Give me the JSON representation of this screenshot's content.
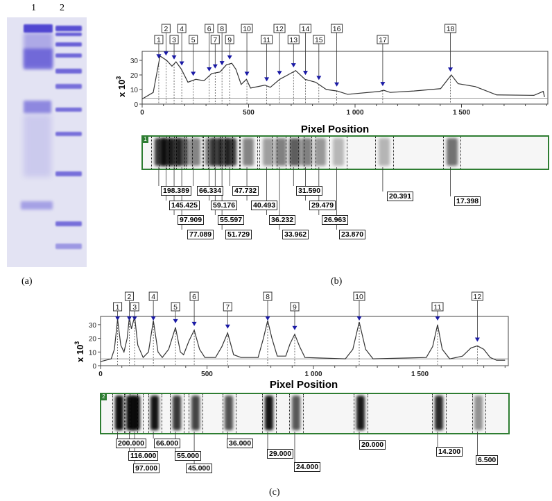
{
  "figure": {
    "panel_labels": {
      "a": "(a)",
      "b": "(b)",
      "c": "(c)"
    },
    "gel_lanes": [
      "1",
      "2"
    ]
  },
  "chart_data": [
    {
      "type": "line",
      "panel": "b",
      "xlabel": "Pixel Position",
      "ylabel": "x 10",
      "ylabel_superscript": "3",
      "xlim": [
        0,
        1900
      ],
      "ylim": [
        0,
        36
      ],
      "xticks": [
        "0",
        "500",
        "1 000",
        "1 500"
      ],
      "xtick_values": [
        0,
        500,
        1000,
        1500
      ],
      "yticks": [
        "0",
        "10",
        "20",
        "30"
      ],
      "ytick_values": [
        0,
        10,
        20,
        30
      ],
      "lane_tag": "1",
      "points": [
        [
          0,
          3.5
        ],
        [
          52,
          8
        ],
        [
          84,
          33
        ],
        [
          115,
          30
        ],
        [
          140,
          26
        ],
        [
          159,
          29
        ],
        [
          184,
          24
        ],
        [
          215,
          15
        ],
        [
          252,
          17
        ],
        [
          290,
          16
        ],
        [
          327,
          21
        ],
        [
          365,
          22
        ],
        [
          396,
          27
        ],
        [
          421,
          28
        ],
        [
          440,
          24
        ],
        [
          465,
          13.5
        ],
        [
          490,
          17
        ],
        [
          509,
          11
        ],
        [
          577,
          13
        ],
        [
          602,
          11.5
        ],
        [
          646,
          17
        ],
        [
          684,
          20
        ],
        [
          721,
          23
        ],
        [
          765,
          17
        ],
        [
          815,
          15
        ],
        [
          865,
          10
        ],
        [
          915,
          9
        ],
        [
          965,
          6.7
        ],
        [
          1115,
          8.7
        ],
        [
          1134,
          9.5
        ],
        [
          1165,
          8
        ],
        [
          1277,
          9
        ],
        [
          1402,
          10.6
        ],
        [
          1452,
          20
        ],
        [
          1484,
          14
        ],
        [
          1565,
          12
        ],
        [
          1665,
          6.3
        ],
        [
          1840,
          6
        ],
        [
          1884,
          8.7
        ],
        [
          1890,
          4.8
        ]
      ],
      "peaks": [
        {
          "label": "1",
          "x": 78,
          "mw": "198.389"
        },
        {
          "label": "2",
          "x": 112,
          "mw": "145.425"
        },
        {
          "label": "3",
          "x": 150,
          "mw": "97.909"
        },
        {
          "label": "4",
          "x": 186,
          "mw": "77.089"
        },
        {
          "label": "5",
          "x": 240,
          "mw": "66.334"
        },
        {
          "label": "6",
          "x": 315,
          "mw": "59.176"
        },
        {
          "label": "7",
          "x": 343,
          "mw": "55.597"
        },
        {
          "label": "8",
          "x": 375,
          "mw": "51.729"
        },
        {
          "label": "9",
          "x": 411,
          "mw": "47.732"
        },
        {
          "label": "10",
          "x": 492,
          "mw": "40.493"
        },
        {
          "label": "11",
          "x": 585,
          "mw": "36.232"
        },
        {
          "label": "12",
          "x": 645,
          "mw": "33.962"
        },
        {
          "label": "13",
          "x": 711,
          "mw": "31.590"
        },
        {
          "label": "14",
          "x": 767,
          "mw": "29.479"
        },
        {
          "label": "15",
          "x": 830,
          "mw": "26.963"
        },
        {
          "label": "16",
          "x": 914,
          "mw": "23.870"
        },
        {
          "label": "17",
          "x": 1130,
          "mw": "20.391"
        },
        {
          "label": "18",
          "x": 1448,
          "mw": "17.398"
        }
      ]
    },
    {
      "type": "line",
      "panel": "c",
      "xlabel": "Pixel Position",
      "ylabel": "x 10",
      "ylabel_superscript": "3",
      "xlim": [
        0,
        1900
      ],
      "ylim": [
        0,
        36
      ],
      "xticks": [
        "0",
        "500",
        "1 000",
        "1 500"
      ],
      "xtick_values": [
        0,
        500,
        1000,
        1500
      ],
      "yticks": [
        "0",
        "10",
        "20",
        "30"
      ],
      "ytick_values": [
        0,
        10,
        20,
        30
      ],
      "lane_tag": "2",
      "points": [
        [
          0,
          3
        ],
        [
          50,
          5
        ],
        [
          65,
          12
        ],
        [
          80,
          34
        ],
        [
          95,
          15
        ],
        [
          110,
          10
        ],
        [
          125,
          20
        ],
        [
          135,
          35
        ],
        [
          145,
          27
        ],
        [
          160,
          36
        ],
        [
          175,
          15
        ],
        [
          200,
          6
        ],
        [
          225,
          10
        ],
        [
          248,
          33
        ],
        [
          270,
          10
        ],
        [
          290,
          6
        ],
        [
          320,
          12
        ],
        [
          352,
          28
        ],
        [
          375,
          10
        ],
        [
          390,
          8
        ],
        [
          415,
          18
        ],
        [
          440,
          26
        ],
        [
          465,
          12
        ],
        [
          490,
          6
        ],
        [
          540,
          6
        ],
        [
          570,
          14
        ],
        [
          597,
          24
        ],
        [
          625,
          8
        ],
        [
          660,
          6
        ],
        [
          740,
          6
        ],
        [
          765,
          20
        ],
        [
          785,
          33
        ],
        [
          805,
          20
        ],
        [
          830,
          7
        ],
        [
          870,
          7
        ],
        [
          890,
          16
        ],
        [
          912,
          23
        ],
        [
          935,
          14
        ],
        [
          960,
          6
        ],
        [
          1150,
          5
        ],
        [
          1185,
          12
        ],
        [
          1215,
          32
        ],
        [
          1245,
          12
        ],
        [
          1280,
          5
        ],
        [
          1530,
          6
        ],
        [
          1560,
          14
        ],
        [
          1583,
          30
        ],
        [
          1605,
          12
        ],
        [
          1640,
          5
        ],
        [
          1700,
          7
        ],
        [
          1740,
          13
        ],
        [
          1770,
          14.5
        ],
        [
          1800,
          12
        ],
        [
          1830,
          6
        ],
        [
          1860,
          4
        ],
        [
          1900,
          4
        ]
      ],
      "peaks": [
        {
          "label": "1",
          "x": 80,
          "mw": "200.000"
        },
        {
          "label": "2",
          "x": 135,
          "mw": "116.000"
        },
        {
          "label": "3",
          "x": 160,
          "mw": "97.000"
        },
        {
          "label": "4",
          "x": 248,
          "mw": "66.000"
        },
        {
          "label": "5",
          "x": 352,
          "mw": "55.000"
        },
        {
          "label": "6",
          "x": 440,
          "mw": "45.000"
        },
        {
          "label": "7",
          "x": 597,
          "mw": "36.000"
        },
        {
          "label": "8",
          "x": 785,
          "mw": "29.000"
        },
        {
          "label": "9",
          "x": 912,
          "mw": "24.000"
        },
        {
          "label": "10",
          "x": 1215,
          "mw": "20.000"
        },
        {
          "label": "11",
          "x": 1583,
          "mw": "14.200"
        },
        {
          "label": "12",
          "x": 1770,
          "mw": "6.500"
        }
      ]
    }
  ],
  "colors": {
    "marker": "#1a1aa6",
    "strip_border": "#2e7d32",
    "gel_stain": "#4a3fd0",
    "line": "#333333"
  }
}
